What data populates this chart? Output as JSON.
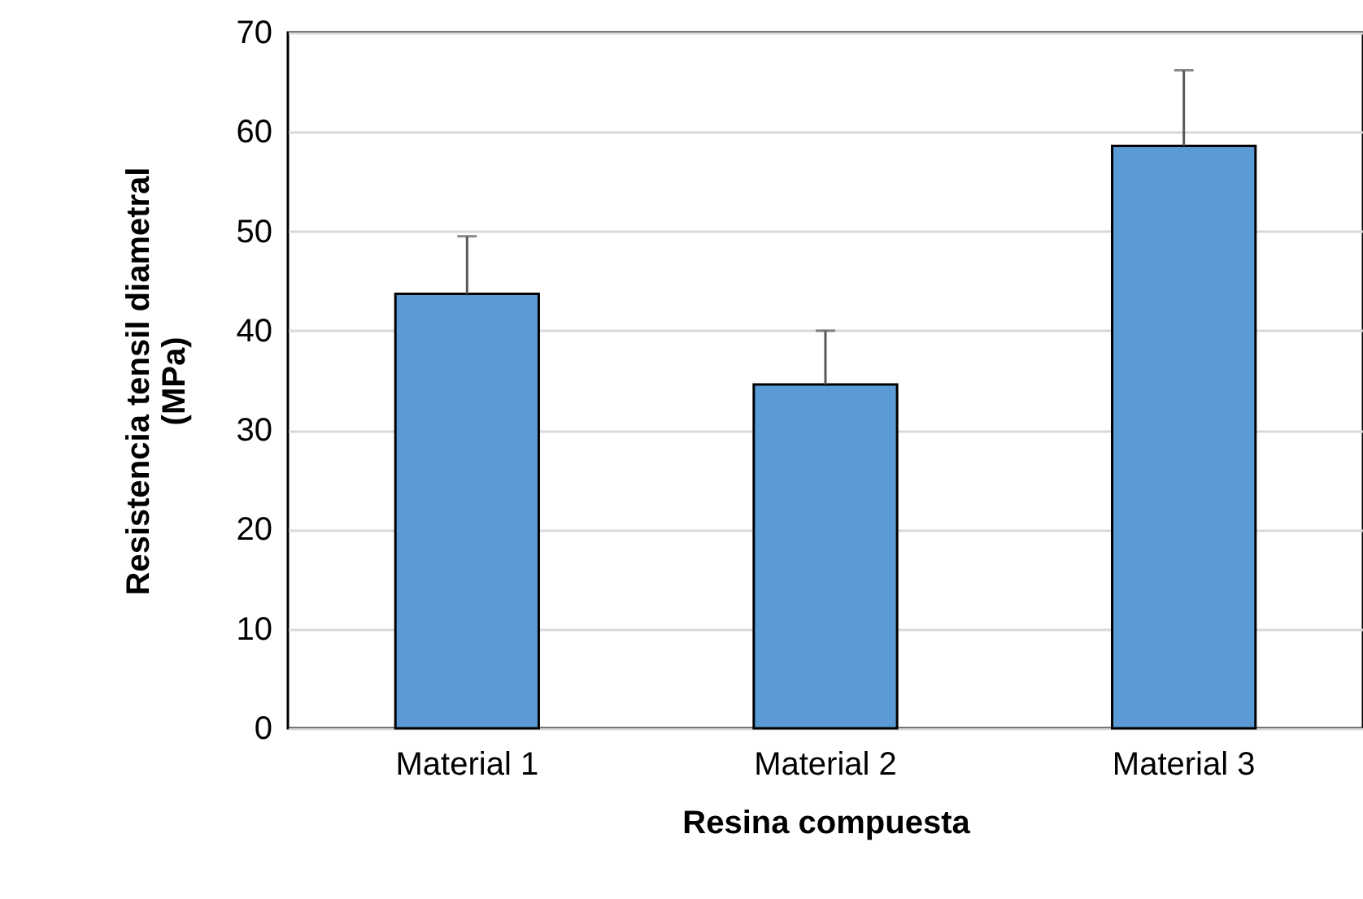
{
  "chart_data": {
    "type": "bar",
    "xlabel": "Resina compuesta",
    "ylabel": "Resistencia tensil diametral\n(MPa)",
    "categories": [
      "Material 1",
      "Material 2",
      "Material 3"
    ],
    "values": [
      43.7,
      34.6,
      58.6
    ],
    "color": "#5b9bd5",
    "errors": [
      [
        43.7,
        49.5
      ],
      [
        34.6,
        40.0
      ],
      [
        58.6,
        66.2
      ]
    ],
    "ylim": [
      0,
      70
    ],
    "yticks": [
      0,
      10,
      20,
      30,
      40,
      50,
      60,
      70
    ],
    "grid": "y"
  }
}
